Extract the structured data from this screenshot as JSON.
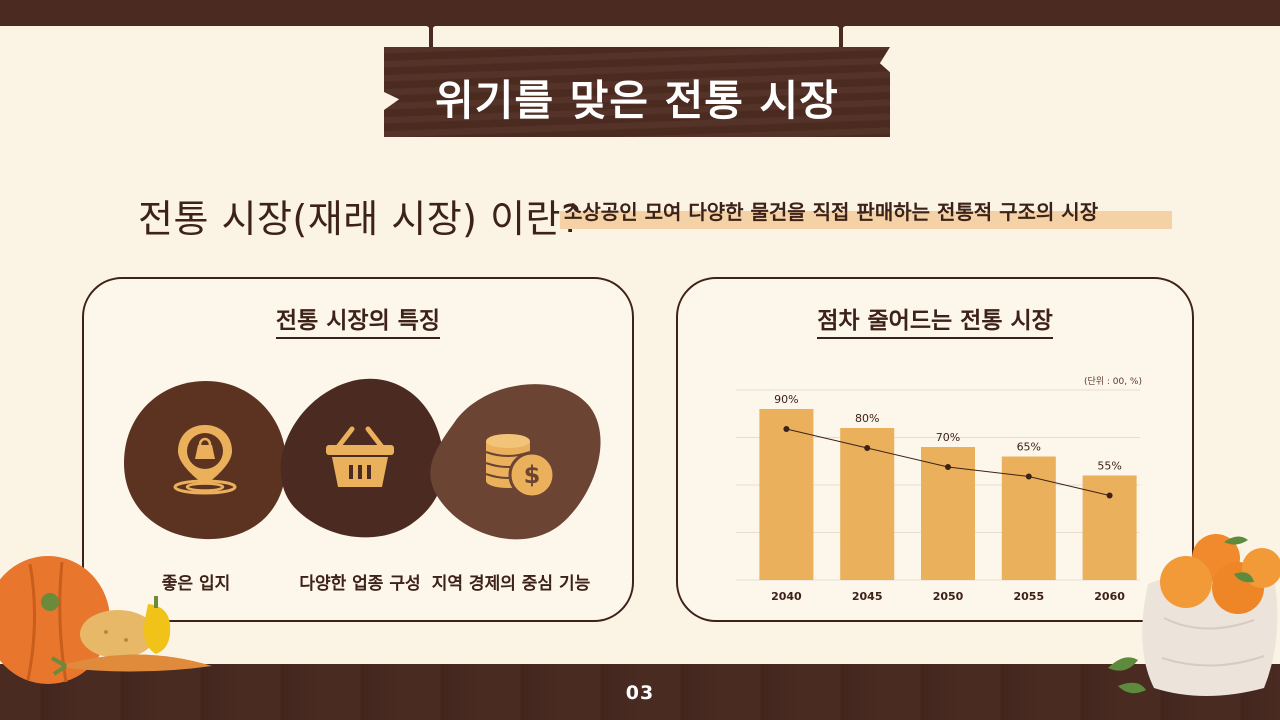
{
  "header": {
    "title": "위기를 맞은 전통 시장"
  },
  "intro": {
    "question": "전통 시장(재래 시장) 이란?",
    "definition": "소상공인 모여 다양한 물건을 직접 판매하는 전통적 구조의 시장"
  },
  "features": {
    "title": "전통 시장의 특징",
    "items": [
      {
        "label": "좋은 입지",
        "icon": "location-bag-icon",
        "color": "#5c3321"
      },
      {
        "label": "다양한 업종 구성",
        "icon": "basket-icon",
        "color": "#4a2a21"
      },
      {
        "label": "지역 경제의 중심 기능",
        "icon": "coins-dollar-icon",
        "color": "#6b4433"
      }
    ]
  },
  "decline": {
    "title": "점차 줄어드는 전통 시장",
    "unit": "(단위 : 00, %)"
  },
  "chart_data": {
    "type": "bar",
    "categories": [
      "2040",
      "2045",
      "2050",
      "2055",
      "2060"
    ],
    "values": [
      90,
      80,
      70,
      65,
      55
    ],
    "data_labels": [
      "90%",
      "80%",
      "70%",
      "65%",
      "55%"
    ],
    "overlay_line": true,
    "ylim": [
      0,
      100
    ],
    "grid": true,
    "colors": {
      "bar": "#eab05c",
      "line": "#3d2219",
      "grid": "#e6ddd0"
    }
  },
  "footer": {
    "page": "03"
  },
  "colors": {
    "background": "#fbf3e4",
    "dark_brown": "#4a2a21",
    "accent": "#eab05c",
    "highlight": "#f4d2a6"
  }
}
